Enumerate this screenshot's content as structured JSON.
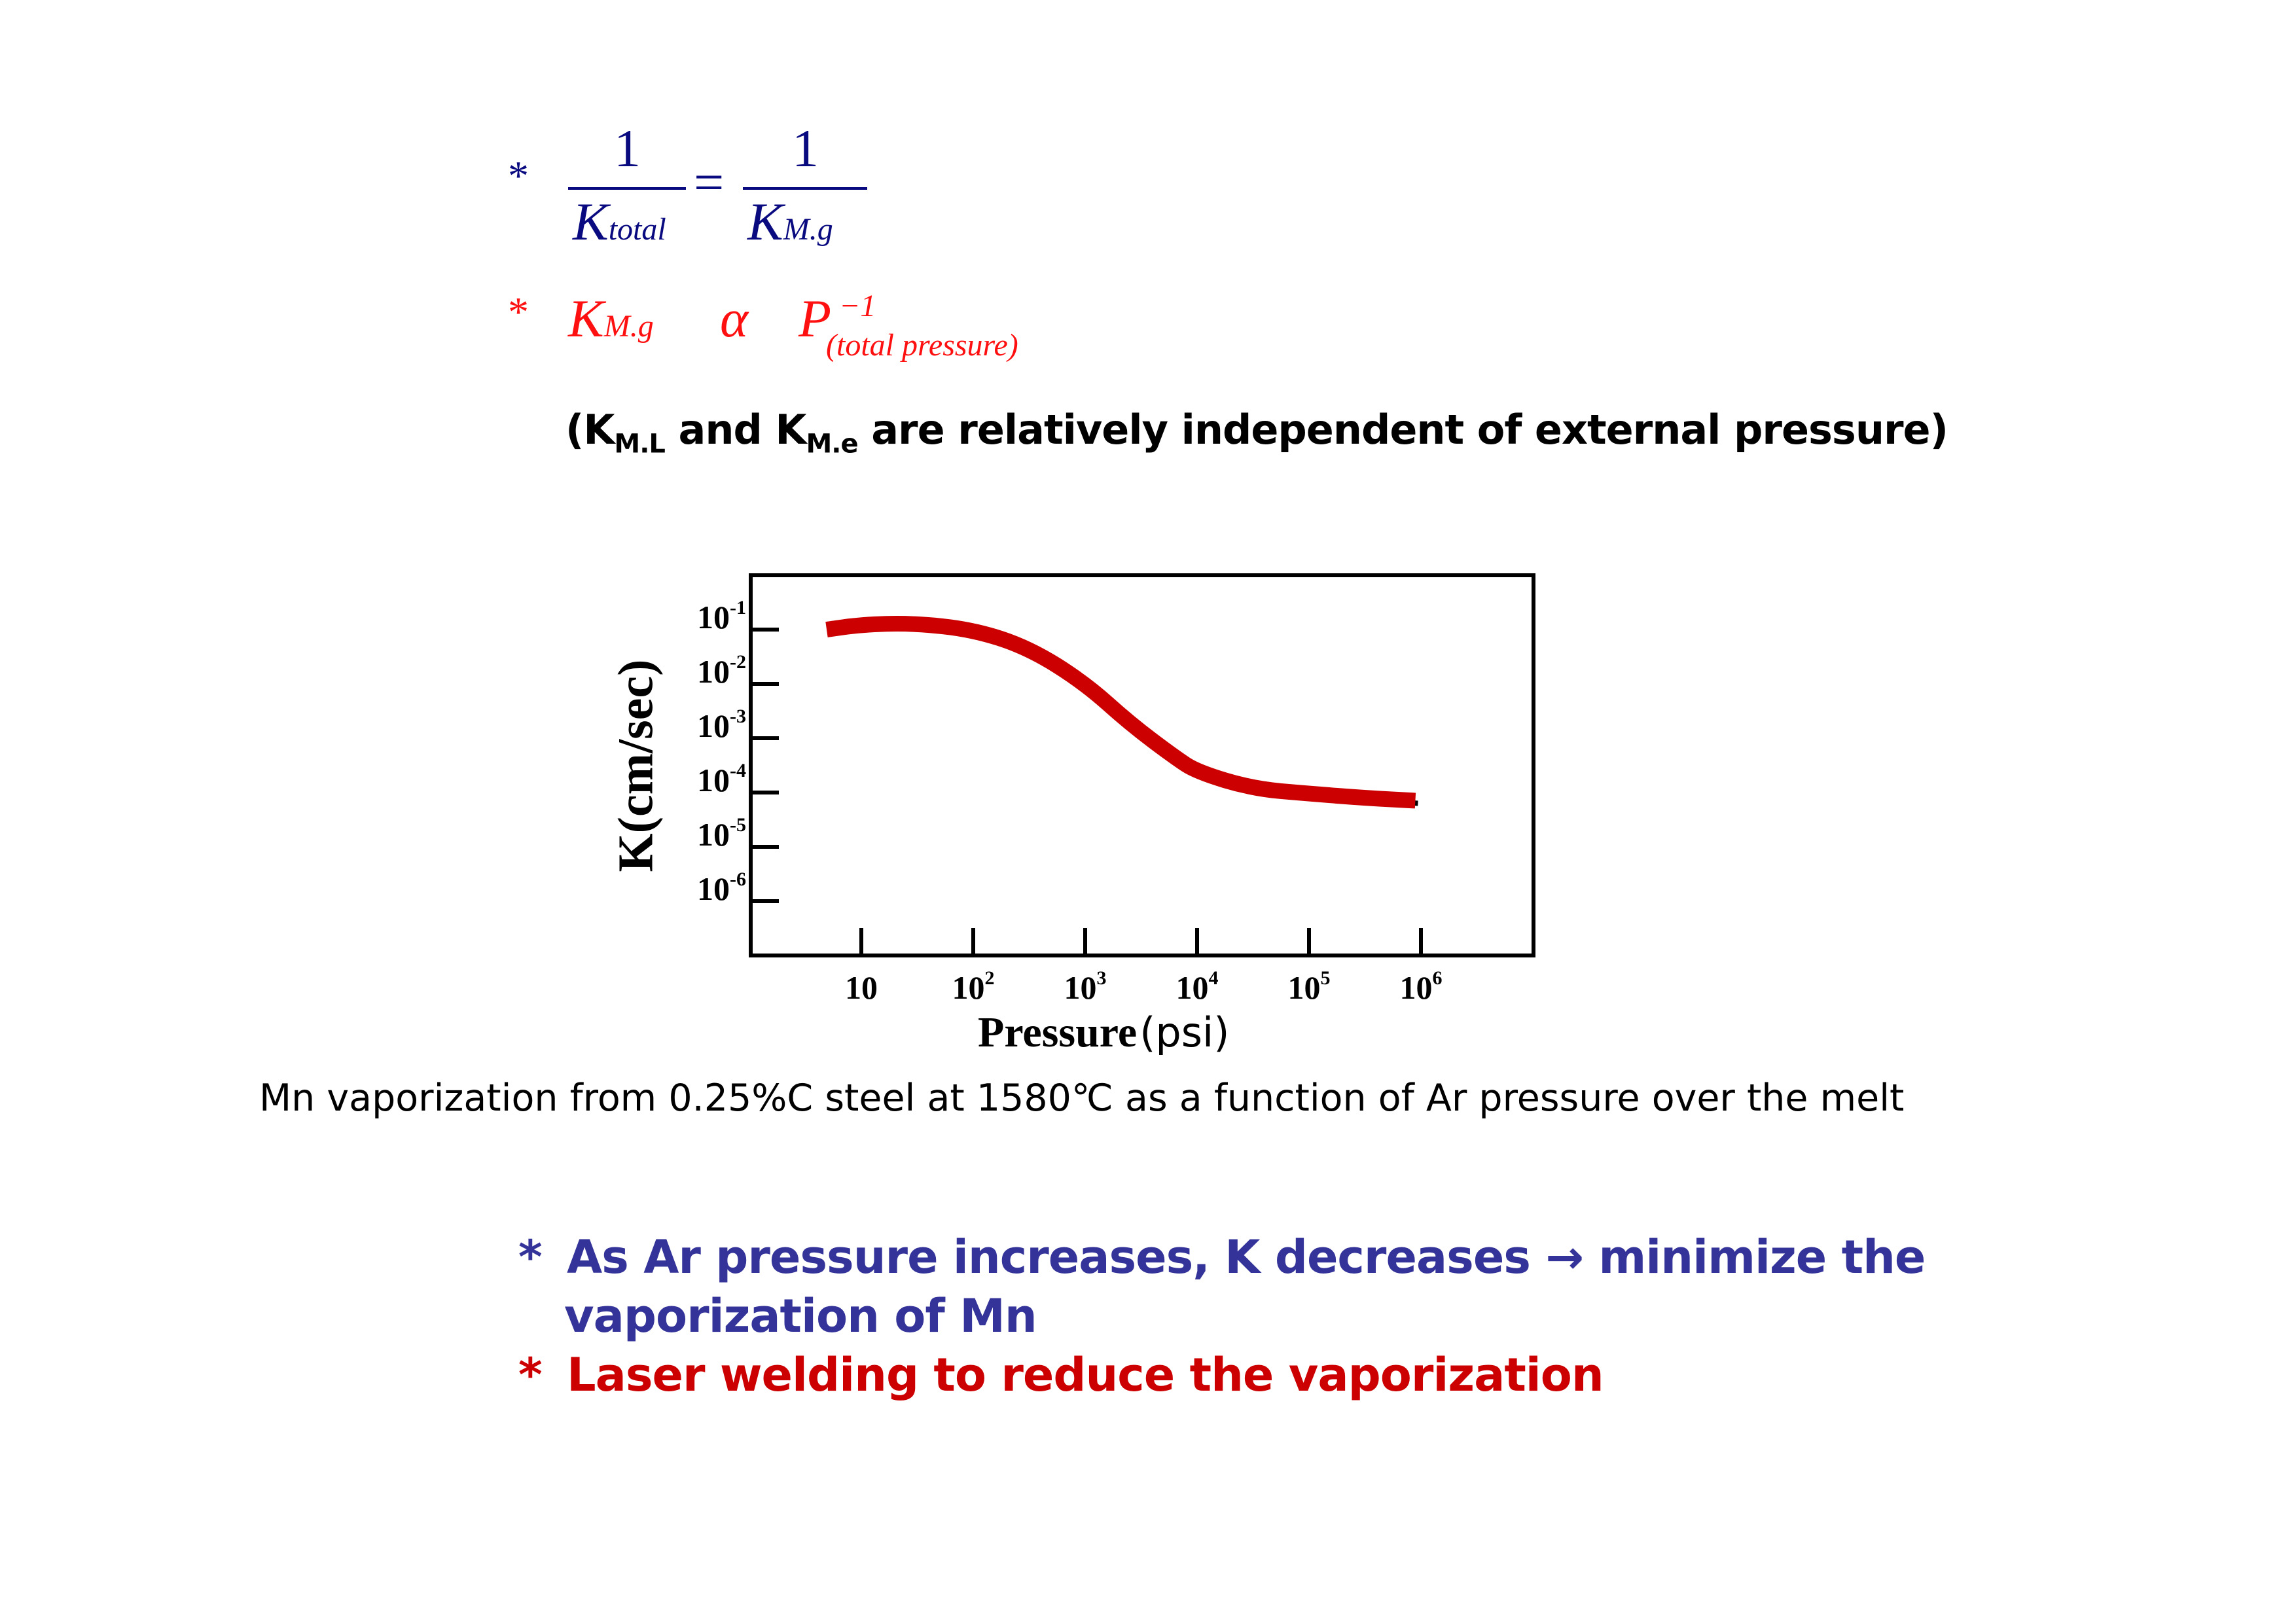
{
  "equations": {
    "eq1": {
      "bullet": "*",
      "num_left": "1",
      "den_left": "K",
      "den_left_sub": "total",
      "equals": "=",
      "num_right": "1",
      "den_right": "K",
      "den_right_sub": "M.g"
    },
    "eq2": {
      "bullet": "*",
      "lhs": "K",
      "lhs_sub": "M.g",
      "relation": "α",
      "rhs": "P",
      "rhs_sup": "−1",
      "rhs_sub": "(total pressure)"
    }
  },
  "note": {
    "open": "(K",
    "sub1": "M.L",
    "mid": " and K",
    "sub2": "M.e",
    "rest": " are relatively independent of external pressure)"
  },
  "chart_data": {
    "type": "line",
    "title": "",
    "xlabel_bold": "Pressure",
    "xlabel_unit": "(psi)",
    "ylabel": "K(cm/sec)",
    "x_scale": "log",
    "y_scale": "log",
    "xlim_log10": [
      0.0,
      7.0
    ],
    "ylim_log10": [
      -7.5,
      0.0
    ],
    "x_ticks": [
      {
        "base": "10",
        "exp": "",
        "log": 1
      },
      {
        "base": "10",
        "exp": "2",
        "log": 2
      },
      {
        "base": "10",
        "exp": "3",
        "log": 3
      },
      {
        "base": "10",
        "exp": "4",
        "log": 4
      },
      {
        "base": "10",
        "exp": "5",
        "log": 5
      },
      {
        "base": "10",
        "exp": "6",
        "log": 6
      }
    ],
    "y_ticks": [
      {
        "base": "10",
        "exp": "-1",
        "log": -1
      },
      {
        "base": "10",
        "exp": "-2",
        "log": -2
      },
      {
        "base": "10",
        "exp": "-3",
        "log": -3
      },
      {
        "base": "10",
        "exp": "-4",
        "log": -4
      },
      {
        "base": "10",
        "exp": "-5",
        "log": -5
      },
      {
        "base": "10",
        "exp": "-6",
        "log": -6
      }
    ],
    "series": [
      {
        "name": "Mn vaporization K",
        "color": "#cc0000",
        "log10_pressure": [
          0.69,
          1.0,
          1.45,
          2.0,
          2.5,
          3.0,
          3.4,
          3.8,
          4.0,
          4.5,
          5.0,
          5.5,
          5.95
        ],
        "log10_K": [
          -1.0,
          -0.91,
          -0.88,
          -1.0,
          -1.34,
          -1.99,
          -2.73,
          -3.35,
          -3.62,
          -3.93,
          -4.02,
          -4.1,
          -4.15
        ]
      }
    ],
    "grid": false,
    "legend": "none"
  },
  "caption": "Mn vaporization from 0.25%C steel at 1580℃ as a function of Ar pressure over the melt",
  "bullets": [
    {
      "star": "*",
      "line1": "As Ar pressure increases, K decreases → minimize the",
      "line2": "vaporization of Mn",
      "color": "#333399"
    },
    {
      "star": "*",
      "line1": "Laser welding to reduce the vaporization",
      "color": "#cc0000"
    }
  ]
}
